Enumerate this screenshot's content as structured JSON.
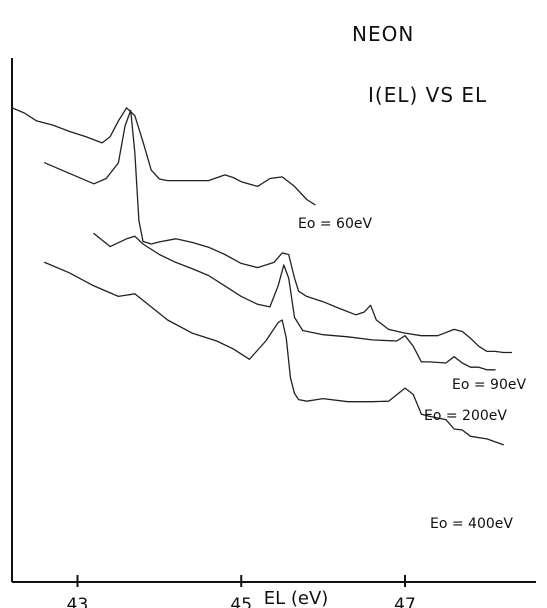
{
  "chart_data": {
    "type": "line",
    "title": "NEON",
    "subtitle": "I(EL) VS EL",
    "xlabel": "EL (eV)",
    "ylabel": "",
    "xlim": [
      42.2,
      48.6
    ],
    "ylim": [
      0,
      1
    ],
    "xticks": [
      43,
      45,
      47
    ],
    "grid": false,
    "legend": "none",
    "series": [
      {
        "name": "Eo = 60eV",
        "x": [
          42.2,
          42.35,
          42.5,
          42.7,
          42.9,
          43.1,
          43.3,
          43.4,
          43.5,
          43.6,
          43.7,
          43.8,
          43.9,
          44.0,
          44.1,
          44.2,
          44.4,
          44.6,
          44.8,
          44.9,
          45.0,
          45.2,
          45.35,
          45.5,
          45.65,
          45.8,
          45.9
        ],
        "y": [
          0.905,
          0.895,
          0.88,
          0.872,
          0.86,
          0.85,
          0.838,
          0.85,
          0.88,
          0.905,
          0.89,
          0.84,
          0.786,
          0.769,
          0.766,
          0.766,
          0.766,
          0.766,
          0.777,
          0.772,
          0.764,
          0.755,
          0.77,
          0.773,
          0.755,
          0.73,
          0.72
        ]
      },
      {
        "name": "Eo = 90eV",
        "x": [
          42.6,
          42.9,
          43.2,
          43.35,
          43.5,
          43.58,
          43.65,
          43.7,
          43.75,
          43.8,
          43.9,
          44.0,
          44.2,
          44.4,
          44.6,
          44.8,
          45.0,
          45.2,
          45.4,
          45.5,
          45.58,
          45.65,
          45.7,
          45.8,
          46.0,
          46.2,
          46.4,
          46.5,
          46.58,
          46.65,
          46.8,
          47.0,
          47.2,
          47.4,
          47.6,
          47.7,
          47.8,
          47.9,
          48.0,
          48.1,
          48.2,
          48.3
        ],
        "y": [
          0.8,
          0.78,
          0.76,
          0.77,
          0.8,
          0.87,
          0.9,
          0.82,
          0.69,
          0.65,
          0.645,
          0.649,
          0.655,
          0.648,
          0.639,
          0.625,
          0.608,
          0.6,
          0.61,
          0.628,
          0.625,
          0.58,
          0.555,
          0.545,
          0.535,
          0.522,
          0.51,
          0.515,
          0.528,
          0.5,
          0.482,
          0.475,
          0.47,
          0.47,
          0.482,
          0.478,
          0.465,
          0.45,
          0.44,
          0.44,
          0.438,
          0.438
        ]
      },
      {
        "name": "Eo = 200eV",
        "x": [
          43.2,
          43.4,
          43.6,
          43.7,
          43.8,
          44.0,
          44.2,
          44.4,
          44.6,
          44.8,
          45.0,
          45.2,
          45.35,
          45.45,
          45.52,
          45.58,
          45.65,
          45.75,
          46.0,
          46.3,
          46.6,
          46.9,
          47.0,
          47.1,
          47.2,
          47.3,
          47.5,
          47.6,
          47.7,
          47.8,
          47.9,
          48.0,
          48.1
        ],
        "y": [
          0.665,
          0.64,
          0.655,
          0.66,
          0.645,
          0.625,
          0.61,
          0.598,
          0.585,
          0.565,
          0.545,
          0.53,
          0.525,
          0.565,
          0.605,
          0.58,
          0.505,
          0.48,
          0.472,
          0.468,
          0.462,
          0.46,
          0.47,
          0.45,
          0.42,
          0.42,
          0.418,
          0.43,
          0.418,
          0.41,
          0.41,
          0.405,
          0.405
        ]
      },
      {
        "name": "Eo = 400eV",
        "x": [
          42.6,
          42.9,
          43.2,
          43.5,
          43.7,
          43.9,
          44.1,
          44.4,
          44.7,
          44.9,
          45.1,
          45.3,
          45.45,
          45.5,
          45.55,
          45.6,
          45.65,
          45.7,
          45.8,
          46.0,
          46.3,
          46.6,
          46.8,
          47.0,
          47.1,
          47.2,
          47.3,
          47.5,
          47.6,
          47.7,
          47.8,
          48.0,
          48.2
        ],
        "y": [
          0.61,
          0.59,
          0.565,
          0.545,
          0.55,
          0.525,
          0.5,
          0.475,
          0.46,
          0.445,
          0.425,
          0.46,
          0.495,
          0.5,
          0.465,
          0.39,
          0.36,
          0.348,
          0.345,
          0.35,
          0.344,
          0.344,
          0.345,
          0.37,
          0.358,
          0.32,
          0.316,
          0.31,
          0.292,
          0.29,
          0.278,
          0.273,
          0.262
        ]
      }
    ],
    "labels": [
      "Eo = 60eV",
      "Eo = 90eV",
      "Eo = 200eV",
      "Eo = 400eV"
    ]
  }
}
